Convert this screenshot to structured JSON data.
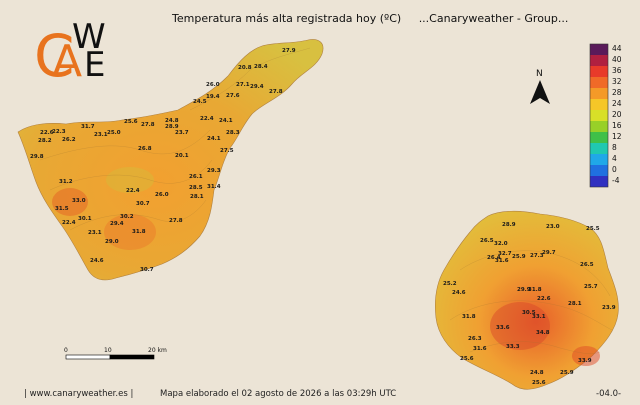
{
  "header": {
    "title": "Temperatura más alta registrada hoy (ºC)",
    "subtitle": "...Canaryweather - Group..."
  },
  "logo": {
    "text": "CAWE",
    "colors": [
      "#e8731e",
      "#111111"
    ]
  },
  "legend": {
    "values": [
      "44",
      "40",
      "36",
      "32",
      "28",
      "24",
      "20",
      "16",
      "12",
      "8",
      "4",
      "0",
      "-4"
    ],
    "colors": [
      "#5a1a5a",
      "#b02040",
      "#e83a2a",
      "#f06a28",
      "#f49a28",
      "#f5c628",
      "#d8e028",
      "#98d028",
      "#40c048",
      "#20c8b0",
      "#20a8e8",
      "#2070e0",
      "#3030c0"
    ]
  },
  "north_arrow": {
    "label": "N"
  },
  "scale_bar": {
    "labels": [
      "0",
      "10",
      "20 km"
    ]
  },
  "footer": {
    "site": "| www.canaryweather.es |",
    "note": "Mapa elaborado el 02 agosto de 2026 a las 03:29h UTC",
    "code": "-04.0-"
  },
  "tenerife_stations": [
    "27.9",
    "20.8",
    "28.4",
    "26.0",
    "27.1",
    "29.4",
    "27.8",
    "19.4",
    "27.6",
    "24.5",
    "25.6",
    "22.4",
    "24.1",
    "28.3",
    "23.1",
    "25.0",
    "22.3",
    "22.6",
    "26.2",
    "31.7",
    "24.8",
    "28.9",
    "23.7",
    "28.2",
    "29.8",
    "20.1",
    "27.8",
    "24.1",
    "27.5",
    "29.3",
    "31.2",
    "22.4",
    "28.5",
    "31.4",
    "33.0",
    "26.0",
    "28.1",
    "31.5",
    "30.1",
    "30.7",
    "30.2",
    "29.4",
    "27.8",
    "22.4",
    "23.1",
    "31.8",
    "29.0",
    "24.6",
    "30.7",
    "26.8",
    "26.1"
  ],
  "grancanaria_stations": [
    "28.9",
    "23.0",
    "25.5",
    "32.0",
    "26.5",
    "29.7",
    "27.3",
    "32.7",
    "25.9",
    "31.6",
    "26.4",
    "29.9",
    "25.2",
    "31.8",
    "24.6",
    "22.6",
    "28.1",
    "25.7",
    "23.9",
    "33.1",
    "30.5",
    "31.8",
    "34.8",
    "33.3",
    "33.6",
    "26.3",
    "24.8",
    "25.6",
    "25.9",
    "25.6",
    "31.6",
    "33.9",
    "26.5"
  ]
}
